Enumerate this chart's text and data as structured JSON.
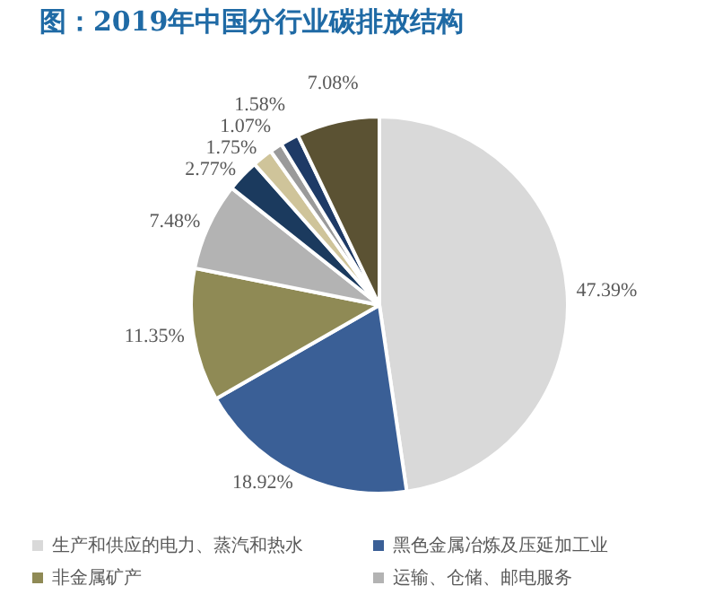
{
  "chart_data": {
    "type": "pie",
    "title": "图：2019年中国分行业碳排放结构",
    "categories": [
      "生产和供应的电力、蒸汽和热水",
      "黑色金属冶炼及压延加工业",
      "非金属矿产",
      "运输、仓储、邮电服务",
      null,
      null,
      null,
      null,
      null
    ],
    "values": [
      47.39,
      18.92,
      11.35,
      7.48,
      2.77,
      1.75,
      1.07,
      1.58,
      7.08
    ],
    "value_labels": [
      "47.39%",
      "18.92%",
      "11.35%",
      "7.48%",
      "2.77%",
      "1.75%",
      "1.07%",
      "1.58%",
      "7.08%"
    ],
    "colors": [
      "#d9d9d9",
      "#3a5f96",
      "#8f8a55",
      "#b3b3b3",
      "#1b3a5e",
      "#cfc49a",
      "#9a9a9a",
      "#1e3a66",
      "#5b5233"
    ],
    "legend": "bottom"
  }
}
